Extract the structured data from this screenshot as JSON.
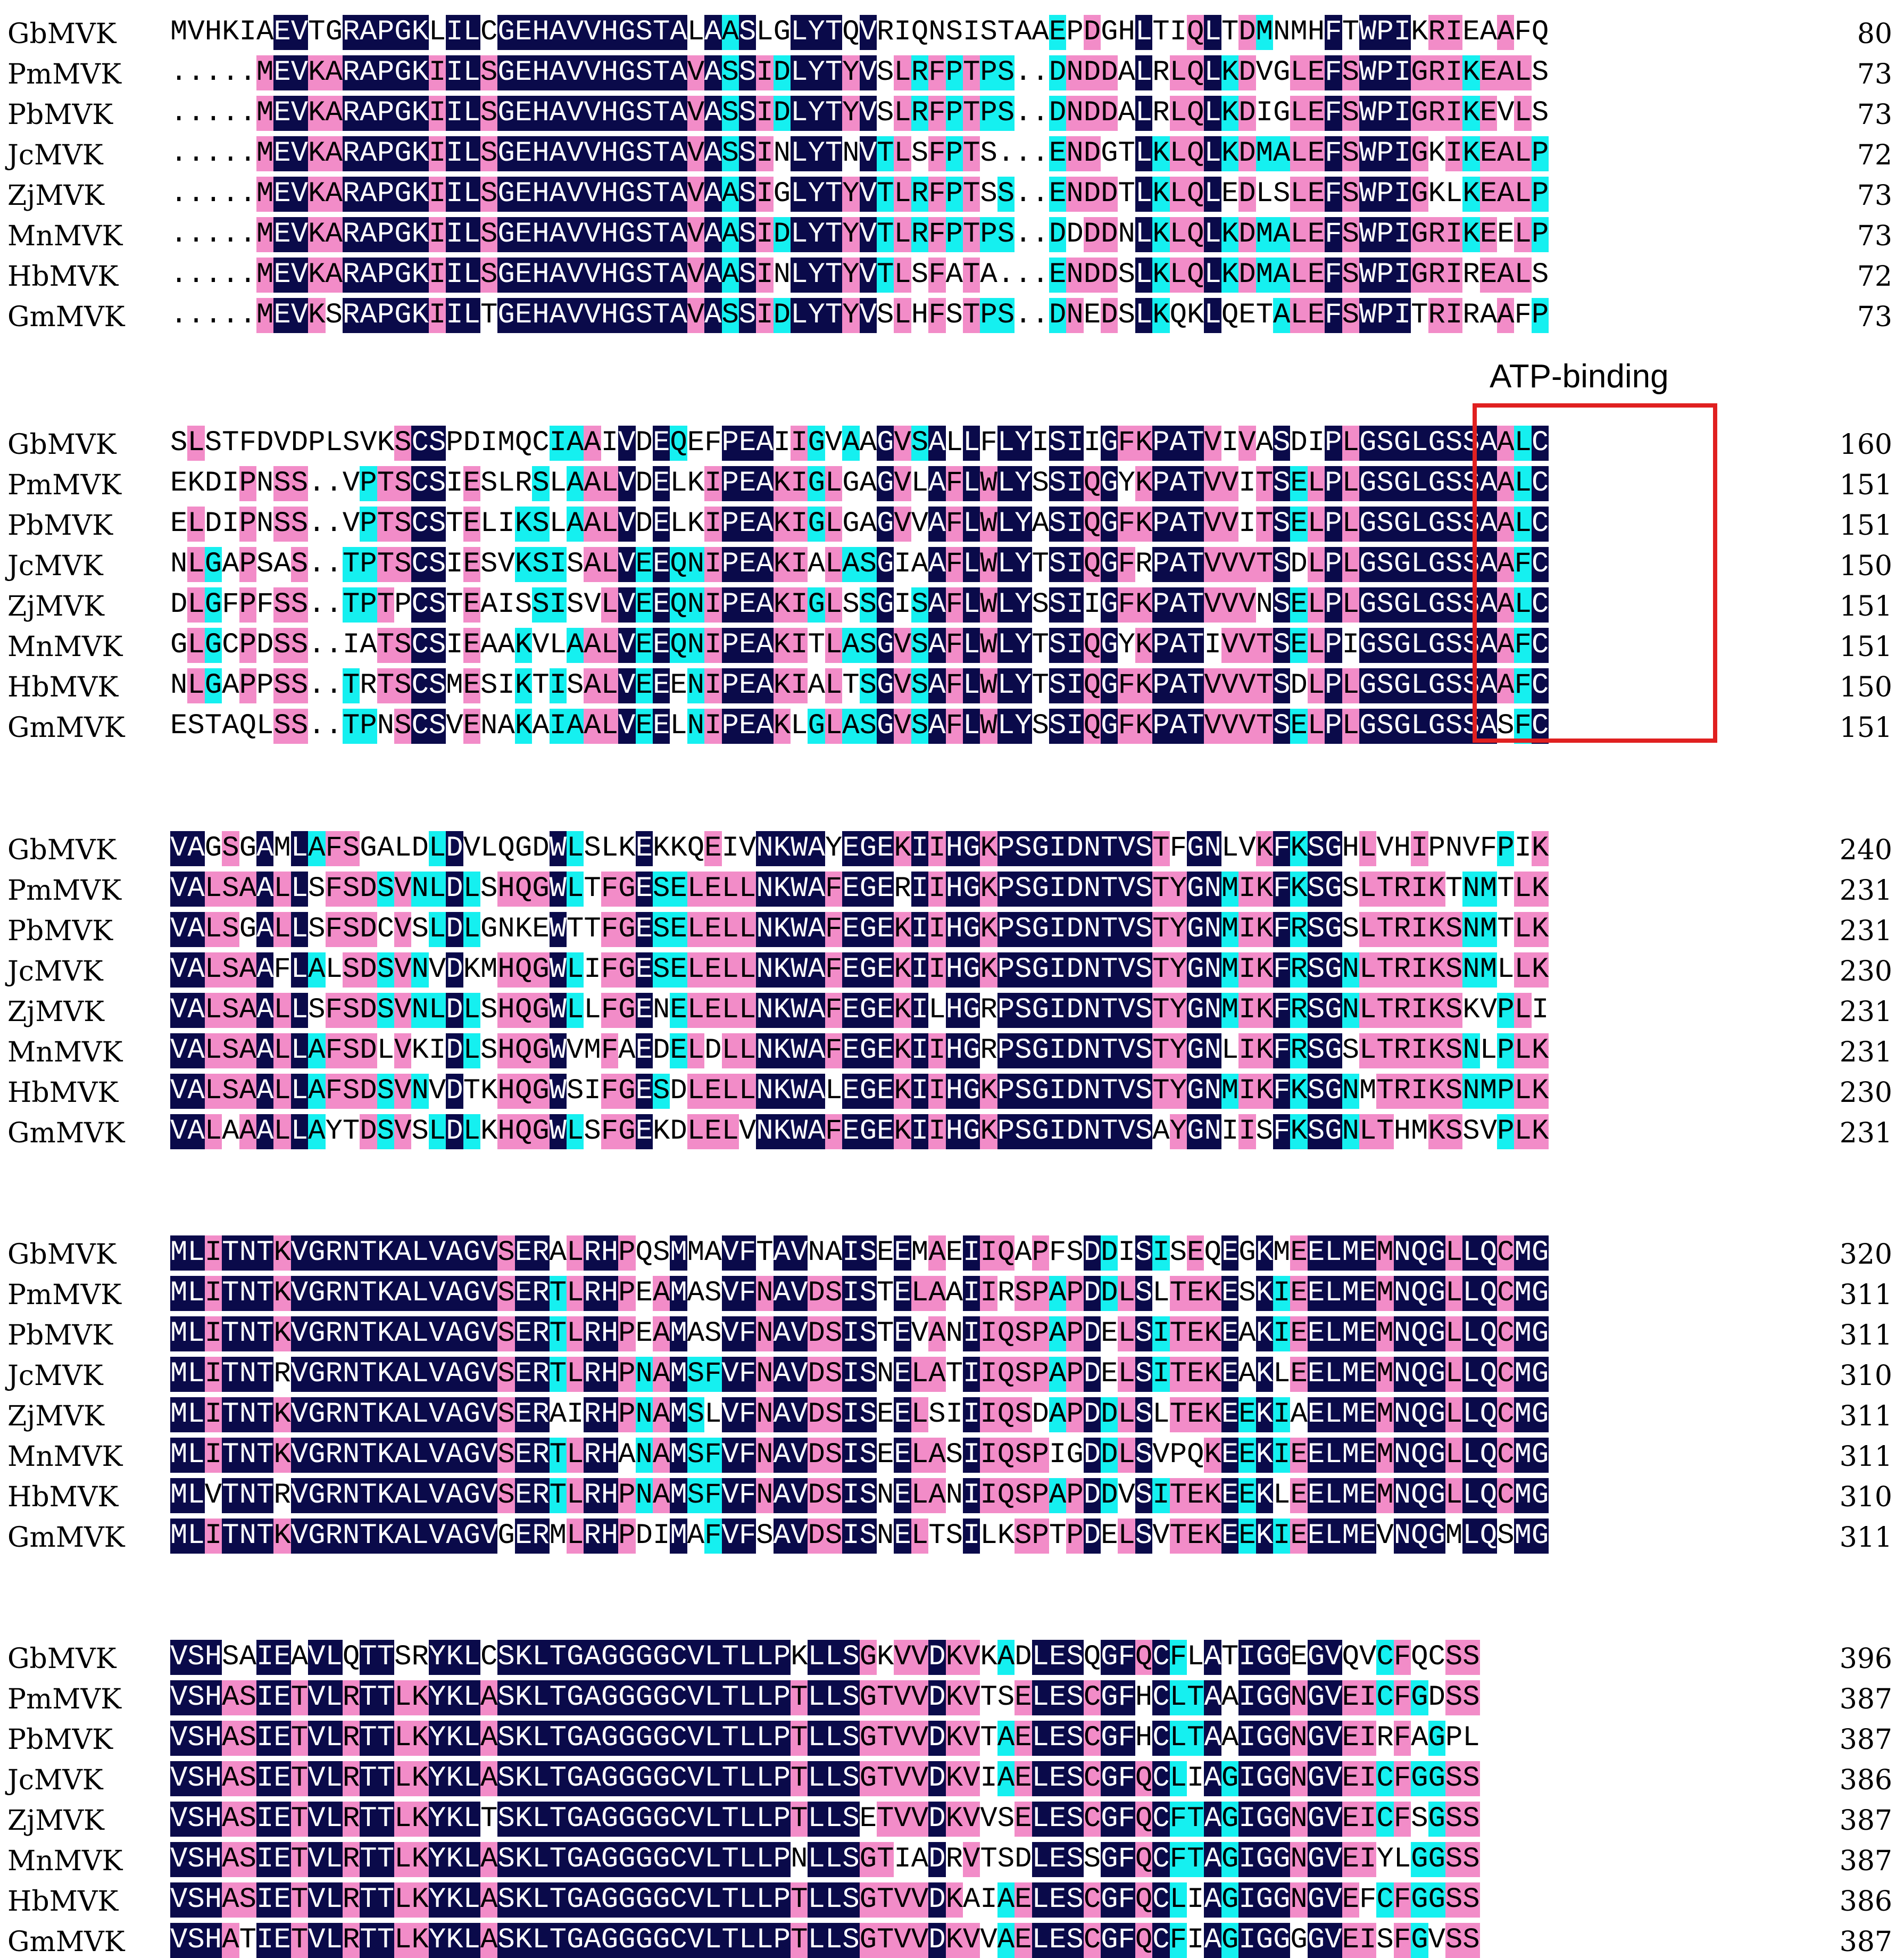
{
  "annotation": {
    "label": "ATP-binding",
    "color": "#e02020"
  },
  "colors": {
    "identical": "#0a0a4a",
    "high": "#f28cc8",
    "partial": "#15f0f0"
  },
  "blocks": [
    {
      "rows": [
        {
          "name": "GbMVK",
          "seq": "MVHKIAEVTGRAPGKLILCGEHAVVHGSTALAASLGLYTQVRIQNSISTAAEPDGHLTIQLTDMNMHFTWPIKRIEAAFQ",
          "end": "80"
        },
        {
          "name": "PmMVK",
          "seq": ".....MEVKARAPGKIILSGEHAVVHGSTAVASSIDLYTYVSLRFPTPS..DNDDALRLQLKDVGLEFSWPIGRIKEALS",
          "end": "73"
        },
        {
          "name": "PbMVK",
          "seq": ".....MEVKARAPGKIILSGEHAVVHGSTAVASSIDLYTYVSLRFPTPS..DNDDALRLQLKDIGLEFSWPIGRIKEVLS",
          "end": "73"
        },
        {
          "name": "JcMVK",
          "seq": ".....MEVKARAPGKIILSGEHAVVHGSTAVASSINLYTNVTLSFPTS...ENDGTLKLQLKDMALEFSWPIGKIKEALP",
          "end": "72"
        },
        {
          "name": "ZjMVK",
          "seq": ".....MEVKARAPGKIILSGEHAVVHGSTAVAASIGLYTYVTLRFPTSS..ENDDTLKLQLEDLSLEFSWPIGKLKEALP",
          "end": "73"
        },
        {
          "name": "MnMVK",
          "seq": ".....MEVKARAPGKIILSGEHAVVHGSTAVAASIDLYTYVTLRFPTPS..DDDDNLKLQLKDMALEFSWPIGRIKEELP",
          "end": "73"
        },
        {
          "name": "HbMVK",
          "seq": ".....MEVKARAPGKIILSGEHAVVHGSTAVAASINLYTYVTLSFATA...ENDDSLKLQLKDMALEFSWPIGRIREALS",
          "end": "72"
        },
        {
          "name": "GmMVK",
          "seq": ".....MEVKSRAPGKIILTGEHAVVHGSTAVASSIDLYTYVSLHFSTPS..DNEDSLKQKLQETALEFSWPITRIRAAFP",
          "end": "73"
        }
      ]
    },
    {
      "rows": [
        {
          "name": "GbMVK",
          "seq": "SLSTFDVDPLSVKSCSPDIMQCIAAIVDEQEFPEAIIGVAAGVSALLFLYISIIGFKPATVIVASDIPLGSGLGSSAALC",
          "end": "160"
        },
        {
          "name": "PmMVK",
          "seq": "EKDIPNSS..VPTSCSIESLRSLAALVDELKIPEAKIGLGAGVLAFLWLYSSIQGYKPATVVITSELPLGSGLGSSAALC",
          "end": "151"
        },
        {
          "name": "PbMVK",
          "seq": "ELDIPNSS..VPTSCSTELIKSLAALVDELKIPEAKIGLGAGVVAFLWLYASIQGFKPATVVITSELPLGSGLGSSAALC",
          "end": "151"
        },
        {
          "name": "JcMVK",
          "seq": "NLGAPSAS..TPTSCSIESVKSISALVEEQNIPEAKIALASGIAAFLWLYTSIQGFRPATVVVTSDLPLGSGLGSSAAFC",
          "end": "150"
        },
        {
          "name": "ZjMVK",
          "seq": "DLGFPFSS..TPTPCSTEAISSISVLVEEQNIPEAKIGLSSGISAFLWLYSSIIGFKPATVVVNSELPLGSGLGSSAALC",
          "end": "151"
        },
        {
          "name": "MnMVK",
          "seq": "GLGCPDSS..IATSCSIEAAKVLAALVEEQNIPEAKITLASGVSAFLWLYTSIQGYKPATIVVTSELPIGSGLGSSAAFC",
          "end": "151"
        },
        {
          "name": "HbMVK",
          "seq": "NLGAPPSS..TRTSCSMESIKTISALVEEENIPEAKIALTSGVSAFLWLYTSIQGFKPATVVVTSDLPLGSGLGSSAAFC",
          "end": "150"
        },
        {
          "name": "GmMVK",
          "seq": "ESTAQLSS..TPNSCSVENAKAIAALVEELNIPEAKLGLASGVSAFLWLYSSIQGFKPATVVVTSELPLGSGLGSSASFC",
          "end": "151"
        }
      ]
    },
    {
      "rows": [
        {
          "name": "GbMVK",
          "seq": "VAGSGAMLAFSGALDLDVLQGDWLSLKEKKQEIVNKWAYEGEKIIHGKPSGIDNTVSTFGNLVKFKSGHLVHIPNVFPIK",
          "end": "240"
        },
        {
          "name": "PmMVK",
          "seq": "VALSAALLSFSDSVNLDLSHQGWLTFGESELELLNKWAFEGERIIHGKPSGIDNTVSTYGNMIKFKSGSLTRIKTNMTLK",
          "end": "231"
        },
        {
          "name": "PbMVK",
          "seq": "VALSGALLSFSDCVSLDLGNKEWTTFGESELELLNKWAFEGEKIIHGKPSGIDNTVSTYGNMIKFRSGSLTRIKSNMTLK",
          "end": "231"
        },
        {
          "name": "JcMVK",
          "seq": "VALSAAFLALSDSVNVDKMHQGWLIFGESELELLNKWAFEGEKIIHGKPSGIDNTVSTYGNMIKFRSGNLTRIKSNMLLK",
          "end": "230"
        },
        {
          "name": "ZjMVK",
          "seq": "VALSAALLSFSDSVNLDLSHQGWLLFGENELELLNKWAFEGEKILHGRPSGIDNTVSTYGNMIKFRSGNLTRIKSKVPLI",
          "end": "231"
        },
        {
          "name": "MnMVK",
          "seq": "VALSAALLAFSDLVKIDLSHQGWVMFAEDELDLLNKWAFEGEKIIHGRPSGIDNTVSTYGNLIKFRSGSLTRIKSNLPLK",
          "end": "231"
        },
        {
          "name": "HbMVK",
          "seq": "VALSAALLAFSDSVNVDTKHQGWSIFGESDLELLNKWALEGEKIIHGKPSGIDNTVSTYGNMIKFKSGNMTRIKSNMPLK",
          "end": "230"
        },
        {
          "name": "GmMVK",
          "seq": "VALAAALLAYTDSVSLDLKHQGWLSFGEKDLELVNKWAFEGEKIIHGKPSGIDNTVSAYGNIISFKSGNLTHMKSSVPLK",
          "end": "231"
        }
      ]
    },
    {
      "rows": [
        {
          "name": "GbMVK",
          "seq": "MLITNTKVGRNTKALVAGVSERALRHPQSMMAVFTAVNAISEEMAEIIQAPFSDDISISEQEGKMEELMEMNQGLLQCMG",
          "end": "320"
        },
        {
          "name": "PmMVK",
          "seq": "MLITNTKVGRNTKALVAGVSERTLRHPEAMASVFNAVDSISTELAAIIRSPAPDDLSLTEKESKIEELMEMNQGLLQCMG",
          "end": "311"
        },
        {
          "name": "PbMVK",
          "seq": "MLITNTKVGRNTKALVAGVSERTLRHPEAMASVFNAVDSISTEVANIIQSPAPDELSITEKEAKIEELMEMNQGLLQCMG",
          "end": "311"
        },
        {
          "name": "JcMVK",
          "seq": "MLITNTRVGRNTKALVAGVSERTLRHPNAMSFVFNAVDSISNELATIIQSPAPDELSITEKEAKLEELMEMNQGLLQCMG",
          "end": "310"
        },
        {
          "name": "ZjMVK",
          "seq": "MLITNTKVGRNTKALVAGVSERAIRHPNAMSLVFNAVDSISEELSIIIQSDAPDDLSLTEKEEKIAELMEMNQGLLQCMG",
          "end": "311"
        },
        {
          "name": "MnMVK",
          "seq": "MLITNTKVGRNTKALVAGVSERTLRHANAMSFVFNAVDSISEELASIIQSPIGDDLSVPQKEEKIEELMEMNQGLLQCMG",
          "end": "311"
        },
        {
          "name": "HbMVK",
          "seq": "MLVTNTRVGRNTKALVAGVSERTLRHPNAMSFVFNAVDSISNELANIIQSPAPDDVSITEKEEKLEELMEMNQGLLQCMG",
          "end": "310"
        },
        {
          "name": "GmMVK",
          "seq": "MLITNTKVGRNTKALVAGVGERMLRHPDIMAFVFSAVDSISNELTSILKSPTPDELSVTEKEEKIEELMEVNQGMLQSMG",
          "end": "311"
        }
      ]
    },
    {
      "rows": [
        {
          "name": "GbMVK",
          "seq": "VSHSAIEAVLQTTSRYKLCSKLTGAGGGGCVLTLLPKLLSGKVVDKVKADLESQGFQCFLATIGGEGVQVCFQCSS",
          "end": "396"
        },
        {
          "name": "PmMVK",
          "seq": "VSHASIETVLRTTLKYKLASKLTGAGGGGCVLTLLPTLLSGTVVDKVTSELESCGFHCLTAAIGGNGVEICFGDSS",
          "end": "387"
        },
        {
          "name": "PbMVK",
          "seq": "VSHASIETVLRTTLKYKLASKLTGAGGGGCVLTLLPTLLSGTVVDKVTAELESCGFHCLTAAIGGNGVEIRFAGPL",
          "end": "387"
        },
        {
          "name": "JcMVK",
          "seq": "VSHASIETVLRTTLKYKLASKLTGAGGGGCVLTLLPTLLSGTVVDKVIAELESCGFQCLIAGIGGNGVEICFGGSS",
          "end": "386"
        },
        {
          "name": "ZjMVK",
          "seq": "VSHASIETVLRTTLKYKLTSKLTGAGGGGCVLTLLPTLLSETVVDKVVSELESCGFQCFTAGIGGNGVEICFSGSS",
          "end": "387"
        },
        {
          "name": "MnMVK",
          "seq": "VSHASIETVLRTTLKYKLASKLTGAGGGGCVLTLLPNLLSGTIADRVTSDLESSGFQCFTAGIGGNGVEIYLGGSS",
          "end": "387"
        },
        {
          "name": "HbMVK",
          "seq": "VSHASIETVLRTTLKYKLASKLTGAGGGGCVLTLLPTLLSGTVVDKAIAELESCGFQCLIAGIGGNGVEFCFGGSS",
          "end": "386"
        },
        {
          "name": "GmMVK",
          "seq": "VSHATIETVLRTTLKYKLASKLTGAGGGGCVLTLLPTLLSGTVVDKVVAELESCGFQCFIAGIGGGGVEISFGVSS",
          "end": "387"
        }
      ]
    }
  ]
}
